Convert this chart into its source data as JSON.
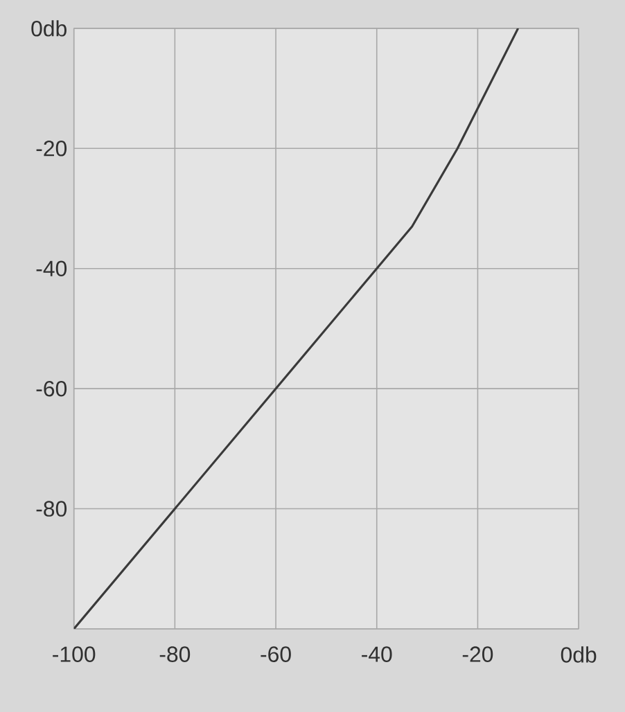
{
  "chart_data": {
    "type": "line",
    "x": [
      -100,
      -40,
      -33,
      -24,
      -12
    ],
    "series": [
      {
        "color": "#3a3a3a",
        "values": [
          -100,
          -40,
          -33,
          -20,
          0
        ]
      }
    ],
    "xlim": [
      -100,
      0
    ],
    "ylim": [
      -100,
      0
    ],
    "xticks": [
      {
        "value": -100,
        "label": "-100"
      },
      {
        "value": -80,
        "label": "-80"
      },
      {
        "value": -60,
        "label": "-60"
      },
      {
        "value": -40,
        "label": "-40"
      },
      {
        "value": -20,
        "label": "-20"
      },
      {
        "value": 0,
        "label": "0db"
      }
    ],
    "yticks": [
      {
        "value": -100,
        "label": null
      },
      {
        "value": -80,
        "label": "-80"
      },
      {
        "value": -60,
        "label": "-60"
      },
      {
        "value": -40,
        "label": "-40"
      },
      {
        "value": -20,
        "label": "-20"
      },
      {
        "value": 0,
        "label": "0db"
      }
    ],
    "grid": true,
    "marker": "none",
    "line_style": "solid"
  }
}
